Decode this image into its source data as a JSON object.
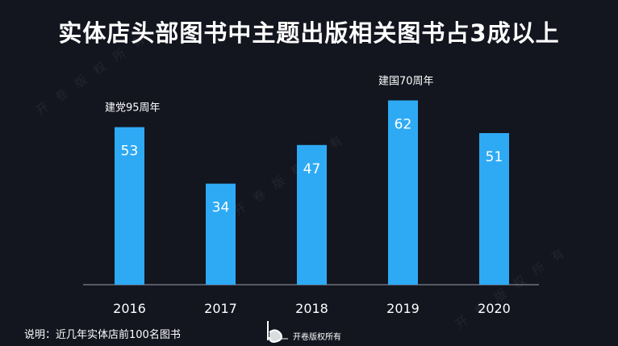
{
  "title": "实体店头部图书中主题出版相关图书占3成以上",
  "footnote": "说明：近几年实体店前100名图书",
  "brand": "开卷版权所有",
  "watermark": "开卷版权所有",
  "colors": {
    "bar": "#2eaaf5",
    "background": "#13151f",
    "axis": "#9aa0aa",
    "text": "#ffffff"
  },
  "chart_data": {
    "type": "bar",
    "categories": [
      "2016",
      "2017",
      "2018",
      "2019",
      "2020"
    ],
    "values": [
      53,
      34,
      47,
      62,
      51
    ],
    "annotations": [
      {
        "category": "2016",
        "text": "建党95周年"
      },
      {
        "category": "2019",
        "text": "建国70周年"
      }
    ],
    "title": "实体店头部图书中主题出版相关图书占3成以上",
    "xlabel": "",
    "ylabel": "",
    "ylim": [
      0,
      70
    ],
    "grid": false,
    "legend": "none"
  }
}
